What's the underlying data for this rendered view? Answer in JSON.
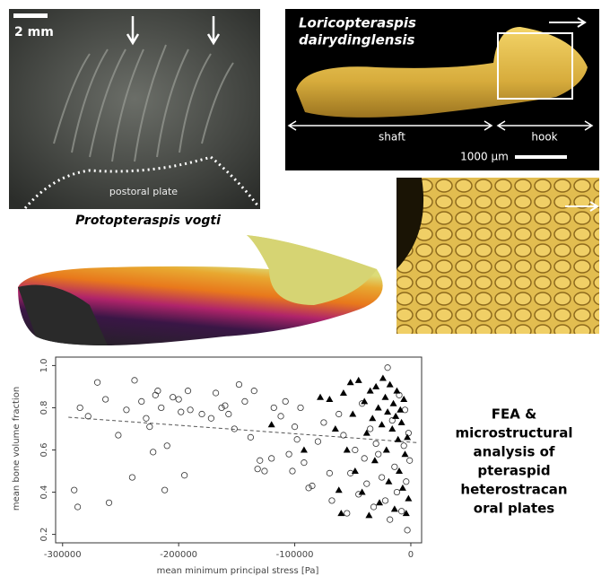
{
  "panels": {
    "scale_photo": "2 mm",
    "postoral": "postoral plate",
    "species_a": "Protopteraspis vogti",
    "species_b": [
      "Loricopteraspis",
      "dairydinglensis"
    ],
    "shaft": "shaft",
    "hook": "hook",
    "scale_render": "1000 μm"
  },
  "side_text": [
    "FEA &",
    "microstructural",
    "analysis of",
    "pteraspid",
    "heterostracan",
    "oral plates"
  ],
  "chart_data": {
    "type": "scatter",
    "xlabel": "mean minimum principal stress [Pa]",
    "ylabel": "mean bone volume fraction",
    "xlim": [
      -306000,
      9300
    ],
    "ylim": [
      0.16,
      1.04
    ],
    "xticks": [
      -300000,
      -200000,
      -100000,
      0
    ],
    "yticks": [
      {
        "value": 0.2,
        "label": "0.2"
      },
      {
        "value": 0.4,
        "label": "0.4"
      },
      {
        "value": 0.6,
        "label": "0.6"
      },
      {
        "value": 0.8,
        "label": "0.8"
      },
      {
        "value": 1,
        "label": "1.0"
      }
    ],
    "series": [
      {
        "marker": "circle",
        "color": "#333333",
        "x": [
          -290000,
          -287000,
          -285000,
          -278000,
          -270000,
          -263000,
          -260000,
          -252000,
          -245000,
          -240000,
          -238000,
          -232000,
          -228000,
          -225000,
          -222000,
          -220000,
          -218000,
          -215000,
          -212000,
          -210000,
          -205000,
          -200000,
          -198000,
          -195000,
          -192000,
          -190000,
          -180000,
          -172000,
          -168000,
          -163000,
          -160000,
          -157000,
          -152000,
          -148000,
          -143000,
          -138000,
          -135000,
          -132000,
          -130000,
          -126000,
          -120000,
          -118000,
          -112000,
          -108000,
          -105000,
          -102000,
          -100000,
          -98000,
          -95000,
          -92000,
          -88000,
          -85000,
          -80000,
          -75000,
          -70000,
          -68000,
          -62000,
          -58000,
          -55000,
          -52000,
          -48000,
          -45000,
          -42000,
          -40000,
          -38000,
          -35000,
          -32000,
          -30000,
          -28000,
          -25000,
          -22000,
          -20000,
          -18000,
          -16000,
          -14000,
          -12000,
          -10000,
          -8000,
          -6000,
          -5000,
          -4000,
          -3000,
          -2000,
          -1000
        ],
        "values": [
          0.41,
          0.33,
          0.8,
          0.76,
          0.92,
          0.84,
          0.35,
          0.67,
          0.79,
          0.47,
          0.93,
          0.83,
          0.75,
          0.71,
          0.59,
          0.86,
          0.88,
          0.8,
          0.41,
          0.62,
          0.85,
          0.84,
          0.78,
          0.48,
          0.88,
          0.79,
          0.77,
          0.75,
          0.87,
          0.8,
          0.81,
          0.77,
          0.7,
          0.91,
          0.83,
          0.66,
          0.88,
          0.51,
          0.55,
          0.5,
          0.56,
          0.8,
          0.76,
          0.83,
          0.58,
          0.5,
          0.71,
          0.65,
          0.8,
          0.54,
          0.42,
          0.43,
          0.64,
          0.73,
          0.49,
          0.36,
          0.77,
          0.67,
          0.3,
          0.49,
          0.6,
          0.39,
          0.82,
          0.56,
          0.44,
          0.7,
          0.33,
          0.63,
          0.58,
          0.47,
          0.36,
          0.99,
          0.27,
          0.74,
          0.52,
          0.4,
          0.86,
          0.31,
          0.62,
          0.79,
          0.45,
          0.22,
          0.68,
          0.55
        ]
      },
      {
        "marker": "triangle",
        "color": "#000000",
        "x": [
          -70000,
          -65000,
          -62000,
          -60000,
          -58000,
          -55000,
          -52000,
          -50000,
          -48000,
          -45000,
          -42000,
          -40000,
          -38000,
          -36000,
          -35000,
          -33000,
          -31000,
          -30000,
          -28000,
          -27000,
          -25000,
          -24000,
          -22000,
          -21000,
          -20000,
          -19000,
          -18000,
          -16000,
          -15000,
          -14000,
          -13000,
          -12000,
          -11000,
          -10000,
          -9000,
          -8000,
          -7000,
          -6000,
          -5000,
          -4000,
          -3000,
          -2000,
          -120000,
          -92000,
          -78000
        ],
        "values": [
          0.84,
          0.7,
          0.41,
          0.3,
          0.87,
          0.6,
          0.92,
          0.77,
          0.5,
          0.93,
          0.4,
          0.83,
          0.68,
          0.29,
          0.88,
          0.75,
          0.55,
          0.9,
          0.8,
          0.35,
          0.72,
          0.94,
          0.85,
          0.6,
          0.78,
          0.45,
          0.91,
          0.7,
          0.82,
          0.32,
          0.76,
          0.88,
          0.65,
          0.5,
          0.79,
          0.73,
          0.42,
          0.84,
          0.58,
          0.3,
          0.66,
          0.37,
          0.72,
          0.6,
          0.85
        ]
      }
    ],
    "fit": {
      "color": "#555555",
      "x": [
        -295000,
        5000
      ],
      "values": [
        0.755,
        0.635
      ]
    }
  }
}
